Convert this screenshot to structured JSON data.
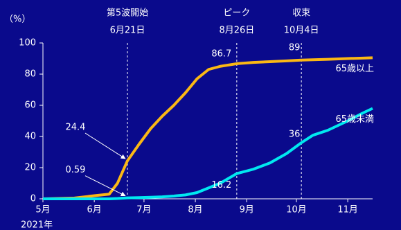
{
  "chart_data": {
    "type": "line",
    "y_axis_label": "（%）",
    "x_axis_year": "2021年",
    "x": [
      "2021-05-01",
      "2021-05-20",
      "2021-06-01",
      "2021-06-10",
      "2021-06-15",
      "2021-06-21",
      "2021-06-28",
      "2021-07-05",
      "2021-07-12",
      "2021-07-19",
      "2021-07-26",
      "2021-08-02",
      "2021-08-09",
      "2021-08-16",
      "2021-08-26",
      "2021-09-05",
      "2021-09-15",
      "2021-09-25",
      "2021-10-04",
      "2021-10-11",
      "2021-10-20",
      "2021-11-01",
      "2021-11-10",
      "2021-11-16"
    ],
    "series": [
      {
        "name": "65歳以上",
        "color": "#fbb814",
        "values": [
          0,
          0.5,
          2,
          3,
          10,
          24.4,
          35,
          45,
          53,
          60,
          68,
          77,
          83,
          85,
          86.7,
          87.5,
          88,
          88.5,
          89,
          89.2,
          89.5,
          90,
          90.3,
          90.5
        ]
      },
      {
        "name": "65歳未満",
        "color": "#00e8f0",
        "values": [
          0,
          0,
          0,
          0,
          0.2,
          0.59,
          0.8,
          1,
          1.3,
          1.8,
          2.5,
          4,
          7,
          10,
          16.2,
          19,
          23,
          29,
          36,
          40.8,
          44,
          50,
          55,
          58
        ]
      }
    ],
    "xlim": [
      "2021-05-01",
      "2021-11-16"
    ],
    "xticks": [
      {
        "value": "2021-05-01",
        "label": "5月"
      },
      {
        "value": "2021-06-01",
        "label": "6月"
      },
      {
        "value": "2021-07-01",
        "label": "7月"
      },
      {
        "value": "2021-08-01",
        "label": "8月"
      },
      {
        "value": "2021-09-01",
        "label": "9月"
      },
      {
        "value": "2021-10-01",
        "label": "10月"
      },
      {
        "value": "2021-11-01",
        "label": "11月"
      }
    ],
    "ylim": [
      0,
      100
    ],
    "yticks": [
      0,
      20,
      40,
      60,
      80,
      100
    ],
    "events": [
      {
        "label": "第5波開始",
        "date_label": "6月21日",
        "date": "2021-06-21"
      },
      {
        "label": "ピーク",
        "date_label": "8月26日",
        "date": "2021-08-26"
      },
      {
        "label": "収束",
        "date_label": "10月4日",
        "date": "2021-10-04"
      }
    ]
  }
}
